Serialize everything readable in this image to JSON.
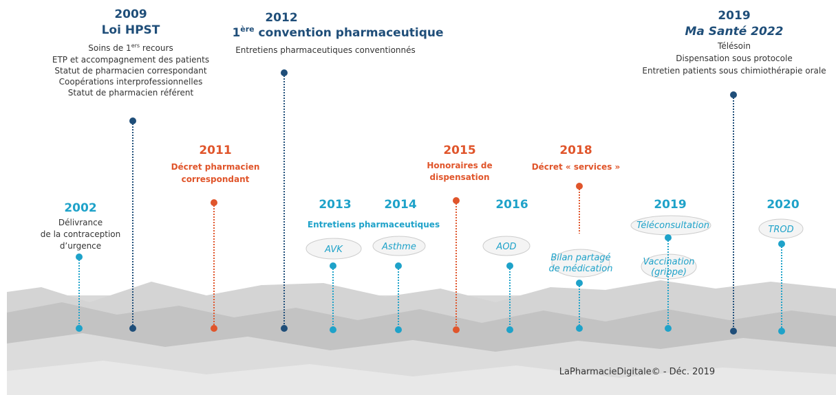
{
  "events": [
    {
      "year": "2002",
      "lines": [
        "Délivrance",
        "de la contraception",
        "d’urgence"
      ]
    },
    {
      "year": "2009",
      "title": "Loi HPST",
      "items": [
        {
          "pre": "Soins de 1",
          "sup": "ers",
          "post": " recours"
        },
        "ETP et accompagnement des patients",
        "Statut de pharmacien correspondant",
        "Coopérations interprofessionnelles",
        "Statut de pharmacien référent"
      ]
    },
    {
      "year": "2011",
      "lines": [
        "Décret pharmacien",
        "correspondant"
      ]
    },
    {
      "year": "2012",
      "title": {
        "pre": "1",
        "sup": "ère",
        "post": " convention pharmaceutique"
      },
      "items": [
        "Entretiens pharmaceutiques conventionnés"
      ]
    },
    {
      "year": "2013",
      "cloud": "AVK"
    },
    {
      "year": "2014",
      "cloud": "Asthme"
    },
    {
      "year": "2015",
      "lines": [
        "Honoraires de",
        "dispensation"
      ]
    },
    {
      "year": "2016",
      "cloud": "AOD"
    },
    {
      "year": "2018",
      "lines": [
        "Décret « services »"
      ],
      "cloud": [
        "Bilan partagé",
        "de médication"
      ]
    },
    {
      "year": "2019",
      "cloud": "Téléconsultation",
      "lines": [
        "Vaccination",
        "(grippe)"
      ]
    },
    {
      "year": "2019",
      "title": "Ma Santé 2022",
      "items": [
        "Télésoin",
        "Dispensation sous protocole",
        "Entretien patients sous chimiothérapie orale"
      ]
    },
    {
      "year": "2020",
      "cloud": "TROD"
    }
  ],
  "group_label": "Entretiens pharmaceutiques",
  "footer": "LaPharmacieDigitale© - Déc. 2019"
}
